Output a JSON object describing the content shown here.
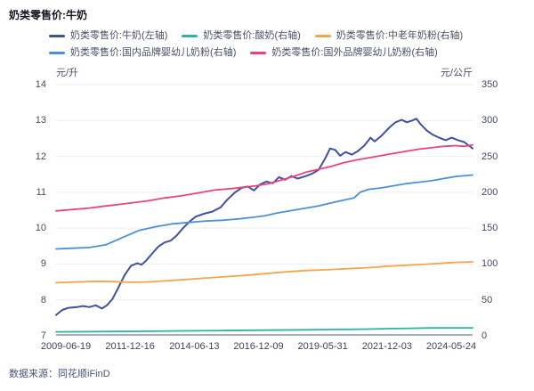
{
  "header": {
    "title": "奶类零售价:牛奶"
  },
  "source": {
    "label": "数据来源：同花顺iFinD"
  },
  "axes": {
    "left_unit": "元/升",
    "right_unit": "元/公斤",
    "left_ticks": [
      14,
      13,
      12,
      11,
      10,
      9,
      8,
      7
    ],
    "right_ticks": [
      350,
      300,
      250,
      200,
      150,
      100,
      50,
      0
    ],
    "x_labels": [
      "2009-06-19",
      "2011-12-16",
      "2014-06-13",
      "2016-12-09",
      "2019-05-31",
      "2021-12-03",
      "2024-05-24"
    ]
  },
  "colors": {
    "grid": "#ebedf4",
    "axis_line": "#a9adbb"
  },
  "chart_data": {
    "type": "line",
    "title": "奶类零售价:牛奶",
    "x_range": [
      "2009-06-19",
      "2024-05-24"
    ],
    "x_tick_labels": [
      "2009-06-19",
      "2011-12-16",
      "2014-06-13",
      "2016-12-09",
      "2019-05-31",
      "2021-12-03",
      "2024-05-24"
    ],
    "left_axis": {
      "label": "元/升",
      "range": [
        7,
        14
      ]
    },
    "right_axis": {
      "label": "元/公斤",
      "range": [
        0,
        350
      ]
    },
    "grid": "horizontal",
    "legend_position": "top",
    "series": [
      {
        "name": "奶类零售价:牛奶(左轴)",
        "axis": "left",
        "color": "#41519e",
        "width": 2,
        "points": [
          [
            0,
            7.58
          ],
          [
            0.015,
            7.72
          ],
          [
            0.03,
            7.78
          ],
          [
            0.05,
            7.8
          ],
          [
            0.065,
            7.83
          ],
          [
            0.08,
            7.8
          ],
          [
            0.095,
            7.85
          ],
          [
            0.11,
            7.76
          ],
          [
            0.122,
            7.85
          ],
          [
            0.135,
            8.02
          ],
          [
            0.15,
            8.35
          ],
          [
            0.165,
            8.7
          ],
          [
            0.18,
            8.95
          ],
          [
            0.195,
            9.02
          ],
          [
            0.205,
            8.98
          ],
          [
            0.215,
            9.08
          ],
          [
            0.23,
            9.28
          ],
          [
            0.245,
            9.48
          ],
          [
            0.26,
            9.6
          ],
          [
            0.275,
            9.65
          ],
          [
            0.29,
            9.8
          ],
          [
            0.305,
            10.0
          ],
          [
            0.32,
            10.18
          ],
          [
            0.335,
            10.32
          ],
          [
            0.355,
            10.4
          ],
          [
            0.375,
            10.46
          ],
          [
            0.395,
            10.58
          ],
          [
            0.41,
            10.78
          ],
          [
            0.43,
            11.0
          ],
          [
            0.445,
            11.12
          ],
          [
            0.46,
            11.16
          ],
          [
            0.475,
            11.05
          ],
          [
            0.49,
            11.22
          ],
          [
            0.505,
            11.3
          ],
          [
            0.52,
            11.25
          ],
          [
            0.535,
            11.42
          ],
          [
            0.55,
            11.35
          ],
          [
            0.565,
            11.45
          ],
          [
            0.58,
            11.38
          ],
          [
            0.6,
            11.45
          ],
          [
            0.615,
            11.52
          ],
          [
            0.63,
            11.62
          ],
          [
            0.645,
            11.92
          ],
          [
            0.658,
            12.22
          ],
          [
            0.67,
            12.18
          ],
          [
            0.682,
            12.02
          ],
          [
            0.695,
            12.12
          ],
          [
            0.71,
            12.05
          ],
          [
            0.725,
            12.15
          ],
          [
            0.74,
            12.3
          ],
          [
            0.755,
            12.52
          ],
          [
            0.765,
            12.42
          ],
          [
            0.78,
            12.56
          ],
          [
            0.8,
            12.8
          ],
          [
            0.815,
            12.95
          ],
          [
            0.83,
            13.02
          ],
          [
            0.842,
            12.95
          ],
          [
            0.855,
            13.0
          ],
          [
            0.865,
            13.05
          ],
          [
            0.875,
            12.9
          ],
          [
            0.89,
            12.72
          ],
          [
            0.905,
            12.6
          ],
          [
            0.92,
            12.52
          ],
          [
            0.935,
            12.45
          ],
          [
            0.95,
            12.52
          ],
          [
            0.965,
            12.45
          ],
          [
            0.98,
            12.4
          ],
          [
            1,
            12.22
          ]
        ]
      },
      {
        "name": "奶类零售价:酸奶(右轴)",
        "axis": "right",
        "color": "#2ab5a5",
        "width": 1.8,
        "points": [
          [
            0,
            5.5
          ],
          [
            0.1,
            5.8
          ],
          [
            0.2,
            6.2
          ],
          [
            0.3,
            6.8
          ],
          [
            0.4,
            7.3
          ],
          [
            0.5,
            7.8
          ],
          [
            0.6,
            8.3
          ],
          [
            0.7,
            8.9
          ],
          [
            0.75,
            9.3
          ],
          [
            0.8,
            9.9
          ],
          [
            0.85,
            10.4
          ],
          [
            0.9,
            10.9
          ],
          [
            0.95,
            11.1
          ],
          [
            1,
            11.0
          ]
        ]
      },
      {
        "name": "奶类零售价:中老年奶粉(右轴)",
        "axis": "right",
        "color": "#f6a54c",
        "width": 1.8,
        "points": [
          [
            0,
            74
          ],
          [
            0.05,
            75
          ],
          [
            0.1,
            76
          ],
          [
            0.14,
            75.5
          ],
          [
            0.18,
            74.5
          ],
          [
            0.22,
            75
          ],
          [
            0.26,
            76.5
          ],
          [
            0.3,
            78
          ],
          [
            0.35,
            80
          ],
          [
            0.4,
            82
          ],
          [
            0.45,
            84
          ],
          [
            0.5,
            86.5
          ],
          [
            0.55,
            89
          ],
          [
            0.6,
            91
          ],
          [
            0.65,
            92
          ],
          [
            0.7,
            93.5
          ],
          [
            0.75,
            95
          ],
          [
            0.8,
            97
          ],
          [
            0.85,
            98.5
          ],
          [
            0.9,
            100
          ],
          [
            0.95,
            102
          ],
          [
            1,
            103
          ]
        ]
      },
      {
        "name": "奶类零售价:国内品牌婴幼儿奶粉(右轴)",
        "axis": "right",
        "color": "#4b90d9",
        "width": 1.8,
        "points": [
          [
            0,
            121
          ],
          [
            0.04,
            122
          ],
          [
            0.08,
            123
          ],
          [
            0.12,
            127
          ],
          [
            0.16,
            137
          ],
          [
            0.2,
            147
          ],
          [
            0.24,
            152
          ],
          [
            0.28,
            156
          ],
          [
            0.32,
            158
          ],
          [
            0.36,
            160
          ],
          [
            0.4,
            161
          ],
          [
            0.44,
            163
          ],
          [
            0.47,
            165
          ],
          [
            0.5,
            167
          ],
          [
            0.53,
            171
          ],
          [
            0.57,
            175
          ],
          [
            0.6,
            178
          ],
          [
            0.63,
            181
          ],
          [
            0.66,
            185
          ],
          [
            0.69,
            189
          ],
          [
            0.715,
            192
          ],
          [
            0.73,
            200
          ],
          [
            0.75,
            204
          ],
          [
            0.78,
            206
          ],
          [
            0.81,
            209
          ],
          [
            0.84,
            212
          ],
          [
            0.87,
            214
          ],
          [
            0.9,
            216
          ],
          [
            0.93,
            219
          ],
          [
            0.96,
            222
          ],
          [
            1,
            224
          ]
        ]
      },
      {
        "name": "奶类零售价:国外品牌婴幼儿奶粉(右轴)",
        "axis": "right",
        "color": "#e8457f",
        "width": 1.8,
        "points": [
          [
            0,
            174
          ],
          [
            0.04,
            176
          ],
          [
            0.08,
            178
          ],
          [
            0.12,
            181
          ],
          [
            0.15,
            183
          ],
          [
            0.18,
            185
          ],
          [
            0.22,
            188
          ],
          [
            0.26,
            192
          ],
          [
            0.3,
            195
          ],
          [
            0.34,
            199
          ],
          [
            0.38,
            203
          ],
          [
            0.42,
            205
          ],
          [
            0.45,
            207
          ],
          [
            0.48,
            209
          ],
          [
            0.51,
            212
          ],
          [
            0.54,
            217
          ],
          [
            0.57,
            222
          ],
          [
            0.6,
            228
          ],
          [
            0.63,
            232
          ],
          [
            0.66,
            236
          ],
          [
            0.69,
            241
          ],
          [
            0.72,
            245
          ],
          [
            0.75,
            248
          ],
          [
            0.78,
            251
          ],
          [
            0.81,
            254
          ],
          [
            0.84,
            257
          ],
          [
            0.87,
            260
          ],
          [
            0.9,
            262
          ],
          [
            0.93,
            264
          ],
          [
            0.96,
            265
          ],
          [
            0.98,
            264
          ],
          [
            1,
            266
          ]
        ]
      }
    ]
  }
}
